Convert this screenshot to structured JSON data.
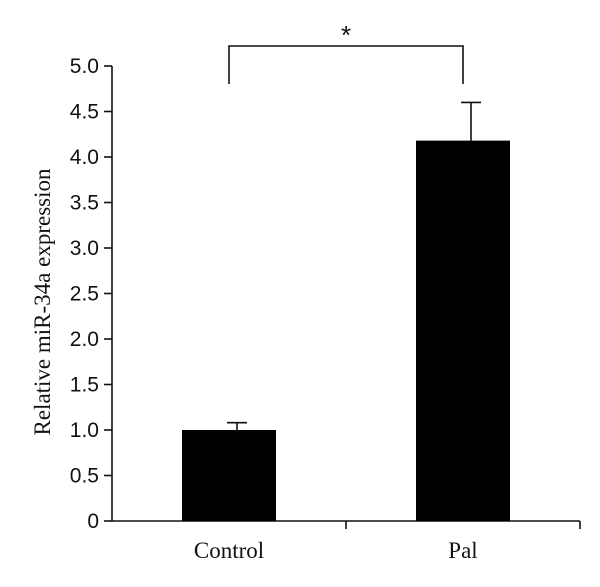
{
  "chart_data": {
    "type": "bar",
    "categories": [
      "Control",
      "Pal"
    ],
    "values": [
      1.0,
      4.18
    ],
    "errors": [
      0.08,
      0.42
    ],
    "title": "",
    "xlabel": "",
    "ylabel": "Relative miR-34a expression",
    "ylim": [
      0,
      5.0
    ],
    "yticks": [
      "0",
      "0.5",
      "1.0",
      "1.5",
      "2.0",
      "2.5",
      "3.0",
      "3.5",
      "4.0",
      "4.5",
      "5.0"
    ],
    "grid": false,
    "bar_color": "#000000",
    "significance": {
      "between": [
        "Control",
        "Pal"
      ],
      "label": "*"
    }
  }
}
